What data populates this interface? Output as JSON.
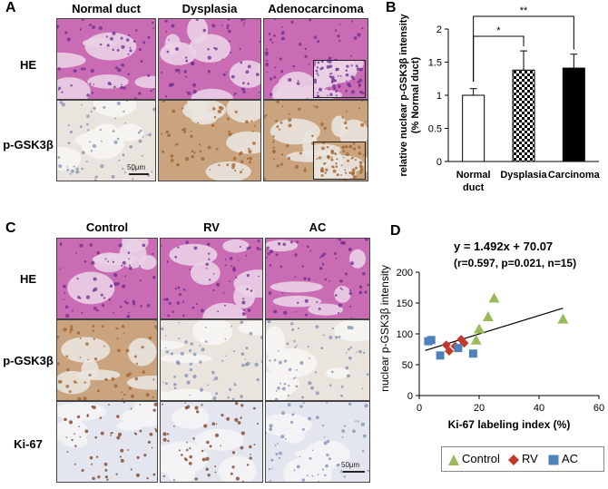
{
  "panel_A": {
    "letter": "A",
    "columns": [
      "Normal duct",
      "Dysplasia",
      "Adenocarcinoma"
    ],
    "rows": [
      "HE",
      "p-GSK3β"
    ],
    "scale_bar": "50μm"
  },
  "panel_C": {
    "letter": "C",
    "columns": [
      "Control",
      "RV",
      "AC"
    ],
    "rows": [
      "HE",
      "p-GSK3β",
      "Ki-67"
    ],
    "scale_bar": "50μm"
  },
  "colors": {
    "he_bg": "#c96cb4",
    "he_dark": "#6a2b8c",
    "he_light": "#ead0e6",
    "ihc_bg": "#e9e4de",
    "ihc_brown": "#a0602c",
    "ihc_blue": "#7f8fb4",
    "control": "#9bbb59",
    "rv": "#c0392b",
    "ac": "#4f81bd"
  },
  "chart_data": [
    {
      "panel": "B",
      "type": "bar",
      "categories": [
        "Normal\nduct",
        "Dysplasia",
        "Carcinoma"
      ],
      "values": [
        1.0,
        1.38,
        1.41
      ],
      "errors": [
        0.1,
        0.29,
        0.21
      ],
      "fills": [
        "white",
        "checker",
        "black"
      ],
      "ylabel": "relative nuclear p-GSK3β intensity\n(% Normal duct)",
      "ylim": [
        0,
        2
      ],
      "yticks": [
        "0",
        "0.5",
        "1",
        "1.5",
        "2"
      ],
      "significance": [
        {
          "from": 0,
          "to": 1,
          "label": "*"
        },
        {
          "from": 0,
          "to": 2,
          "label": "**"
        }
      ]
    },
    {
      "panel": "D",
      "type": "scatter",
      "xlabel": "Ki-67 labeling index (%)",
      "ylabel": "nuclear p-GSK3β intensity",
      "xlim": [
        0,
        60
      ],
      "ylim": [
        0,
        200
      ],
      "xticks": [
        "0",
        "20",
        "40",
        "60"
      ],
      "yticks": [
        "0",
        "50",
        "100",
        "150",
        "200"
      ],
      "equation": "y = 1.492x + 70.07",
      "stats": "(r=0.597, p=0.021, n=15)",
      "regression": {
        "slope": 1.492,
        "intercept": 70.07,
        "x_range": [
          2,
          48
        ]
      },
      "series": [
        {
          "name": "Control",
          "marker": "triangle",
          "points": [
            [
              19,
              90
            ],
            [
              20,
              108
            ],
            [
              23,
              128
            ],
            [
              25,
              158
            ],
            [
              48,
              124
            ]
          ]
        },
        {
          "name": "RV",
          "marker": "diamond",
          "points": [
            [
              9,
              82
            ],
            [
              10,
              72
            ],
            [
              12,
              80
            ],
            [
              14,
              91
            ],
            [
              15,
              85
            ]
          ]
        },
        {
          "name": "AC",
          "marker": "square",
          "points": [
            [
              3,
              88
            ],
            [
              4,
              90
            ],
            [
              7,
              65
            ],
            [
              13,
              77
            ],
            [
              18,
              68
            ]
          ]
        }
      ]
    }
  ]
}
